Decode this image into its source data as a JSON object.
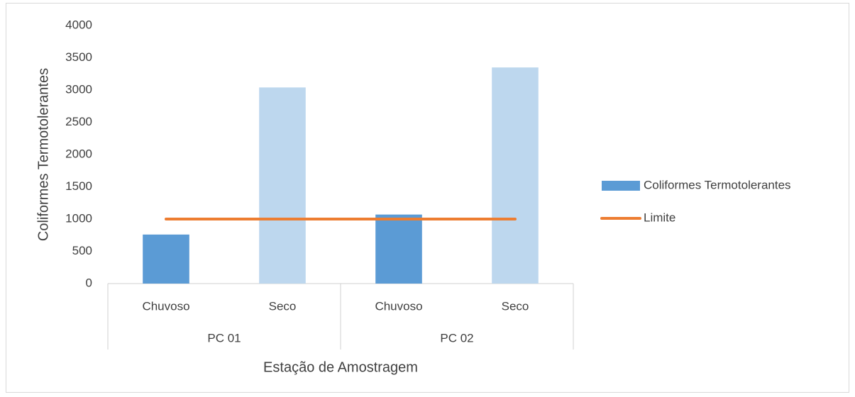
{
  "chart_data": {
    "type": "bar",
    "categories": [
      "Chuvoso",
      "Seco",
      "Chuvoso",
      "Seco"
    ],
    "groups": [
      "PC 01",
      "PC 02"
    ],
    "series": [
      {
        "name": "Coliformes Termotolerantes",
        "type": "bar",
        "color": "#5b9bd5",
        "colors": [
          "#5b9bd5",
          "#bdd7ee",
          "#5b9bd5",
          "#bdd7ee"
        ],
        "values": [
          760,
          3040,
          1070,
          3350
        ]
      },
      {
        "name": "Limite",
        "type": "line",
        "color": "#ed7d31",
        "values": [
          1000,
          1000,
          1000,
          1000
        ]
      }
    ],
    "y_label": "Coliformes Termotolerantes",
    "x_label": "Estação de Amostragem",
    "ylim": [
      0,
      4000
    ],
    "yticks": [
      0,
      500,
      1000,
      1500,
      2000,
      2500,
      3000,
      3500,
      4000
    ],
    "grid": false,
    "legend": "right"
  }
}
